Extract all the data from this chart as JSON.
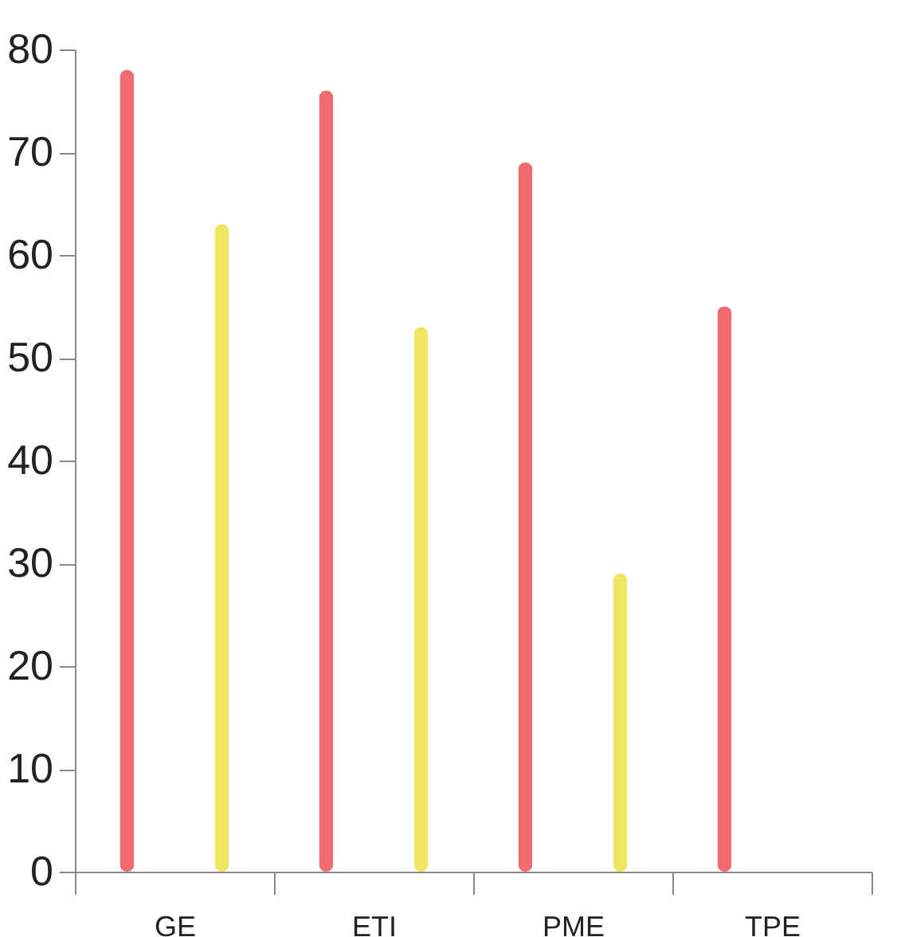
{
  "chart_data": {
    "type": "bar",
    "categories": [
      "GE",
      "ETI",
      "PME",
      "TPE"
    ],
    "series": [
      {
        "color": "#f06a6e",
        "values": [
          78,
          76,
          69,
          55
        ]
      },
      {
        "color": "#f0e562",
        "values": [
          63,
          53,
          29,
          null
        ]
      }
    ],
    "ylim": [
      0,
      80
    ],
    "yticks": [
      0,
      10,
      20,
      30,
      40,
      50,
      60,
      70,
      80
    ],
    "grid": false,
    "legend": false
  }
}
